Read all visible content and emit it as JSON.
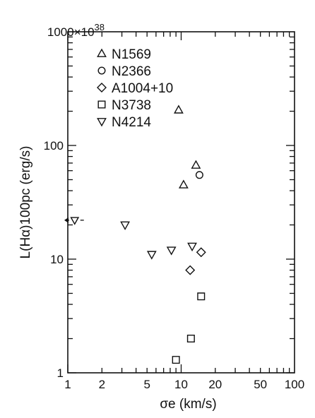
{
  "chart_data": {
    "type": "scatter",
    "title": "",
    "xlabel": "σe (km/s)",
    "ylabel": "L(Hα)100pc (erg/s)",
    "x_scale": "log",
    "y_scale": "log",
    "xlim": [
      1,
      100
    ],
    "ylim": [
      1,
      1000
    ],
    "y_multiplier_label": "1000×10",
    "y_multiplier_exponent": "38",
    "x_tick_labels": [
      "1",
      "2",
      "5",
      "10",
      "20",
      "50",
      "100"
    ],
    "y_tick_labels": [
      "1",
      "10",
      "100"
    ],
    "grid": false,
    "legend_position": "top-left",
    "series": [
      {
        "name": "N1569",
        "marker": "triangle-up",
        "points": [
          [
            9.5,
            205
          ],
          [
            13.5,
            67
          ],
          [
            10.5,
            45
          ]
        ]
      },
      {
        "name": "N2366",
        "marker": "circle",
        "points": [
          [
            14.5,
            55
          ]
        ]
      },
      {
        "name": "A1004+10",
        "marker": "diamond",
        "points": [
          [
            15,
            11.5
          ],
          [
            12,
            8
          ]
        ]
      },
      {
        "name": "N3738",
        "marker": "square",
        "points": [
          [
            15,
            4.7
          ],
          [
            12.2,
            2
          ],
          [
            9,
            1.3
          ]
        ]
      },
      {
        "name": "N4214",
        "marker": "triangle-down",
        "points": [
          [
            3.2,
            20
          ],
          [
            5.5,
            11
          ],
          [
            8.2,
            12
          ],
          [
            12.5,
            13
          ]
        ]
      }
    ],
    "annotations": [
      {
        "text": "lower limit arrow at σe < 1",
        "marker": "triangle-down",
        "point": [
          1.15,
          22
        ],
        "arrow": "left"
      }
    ]
  }
}
